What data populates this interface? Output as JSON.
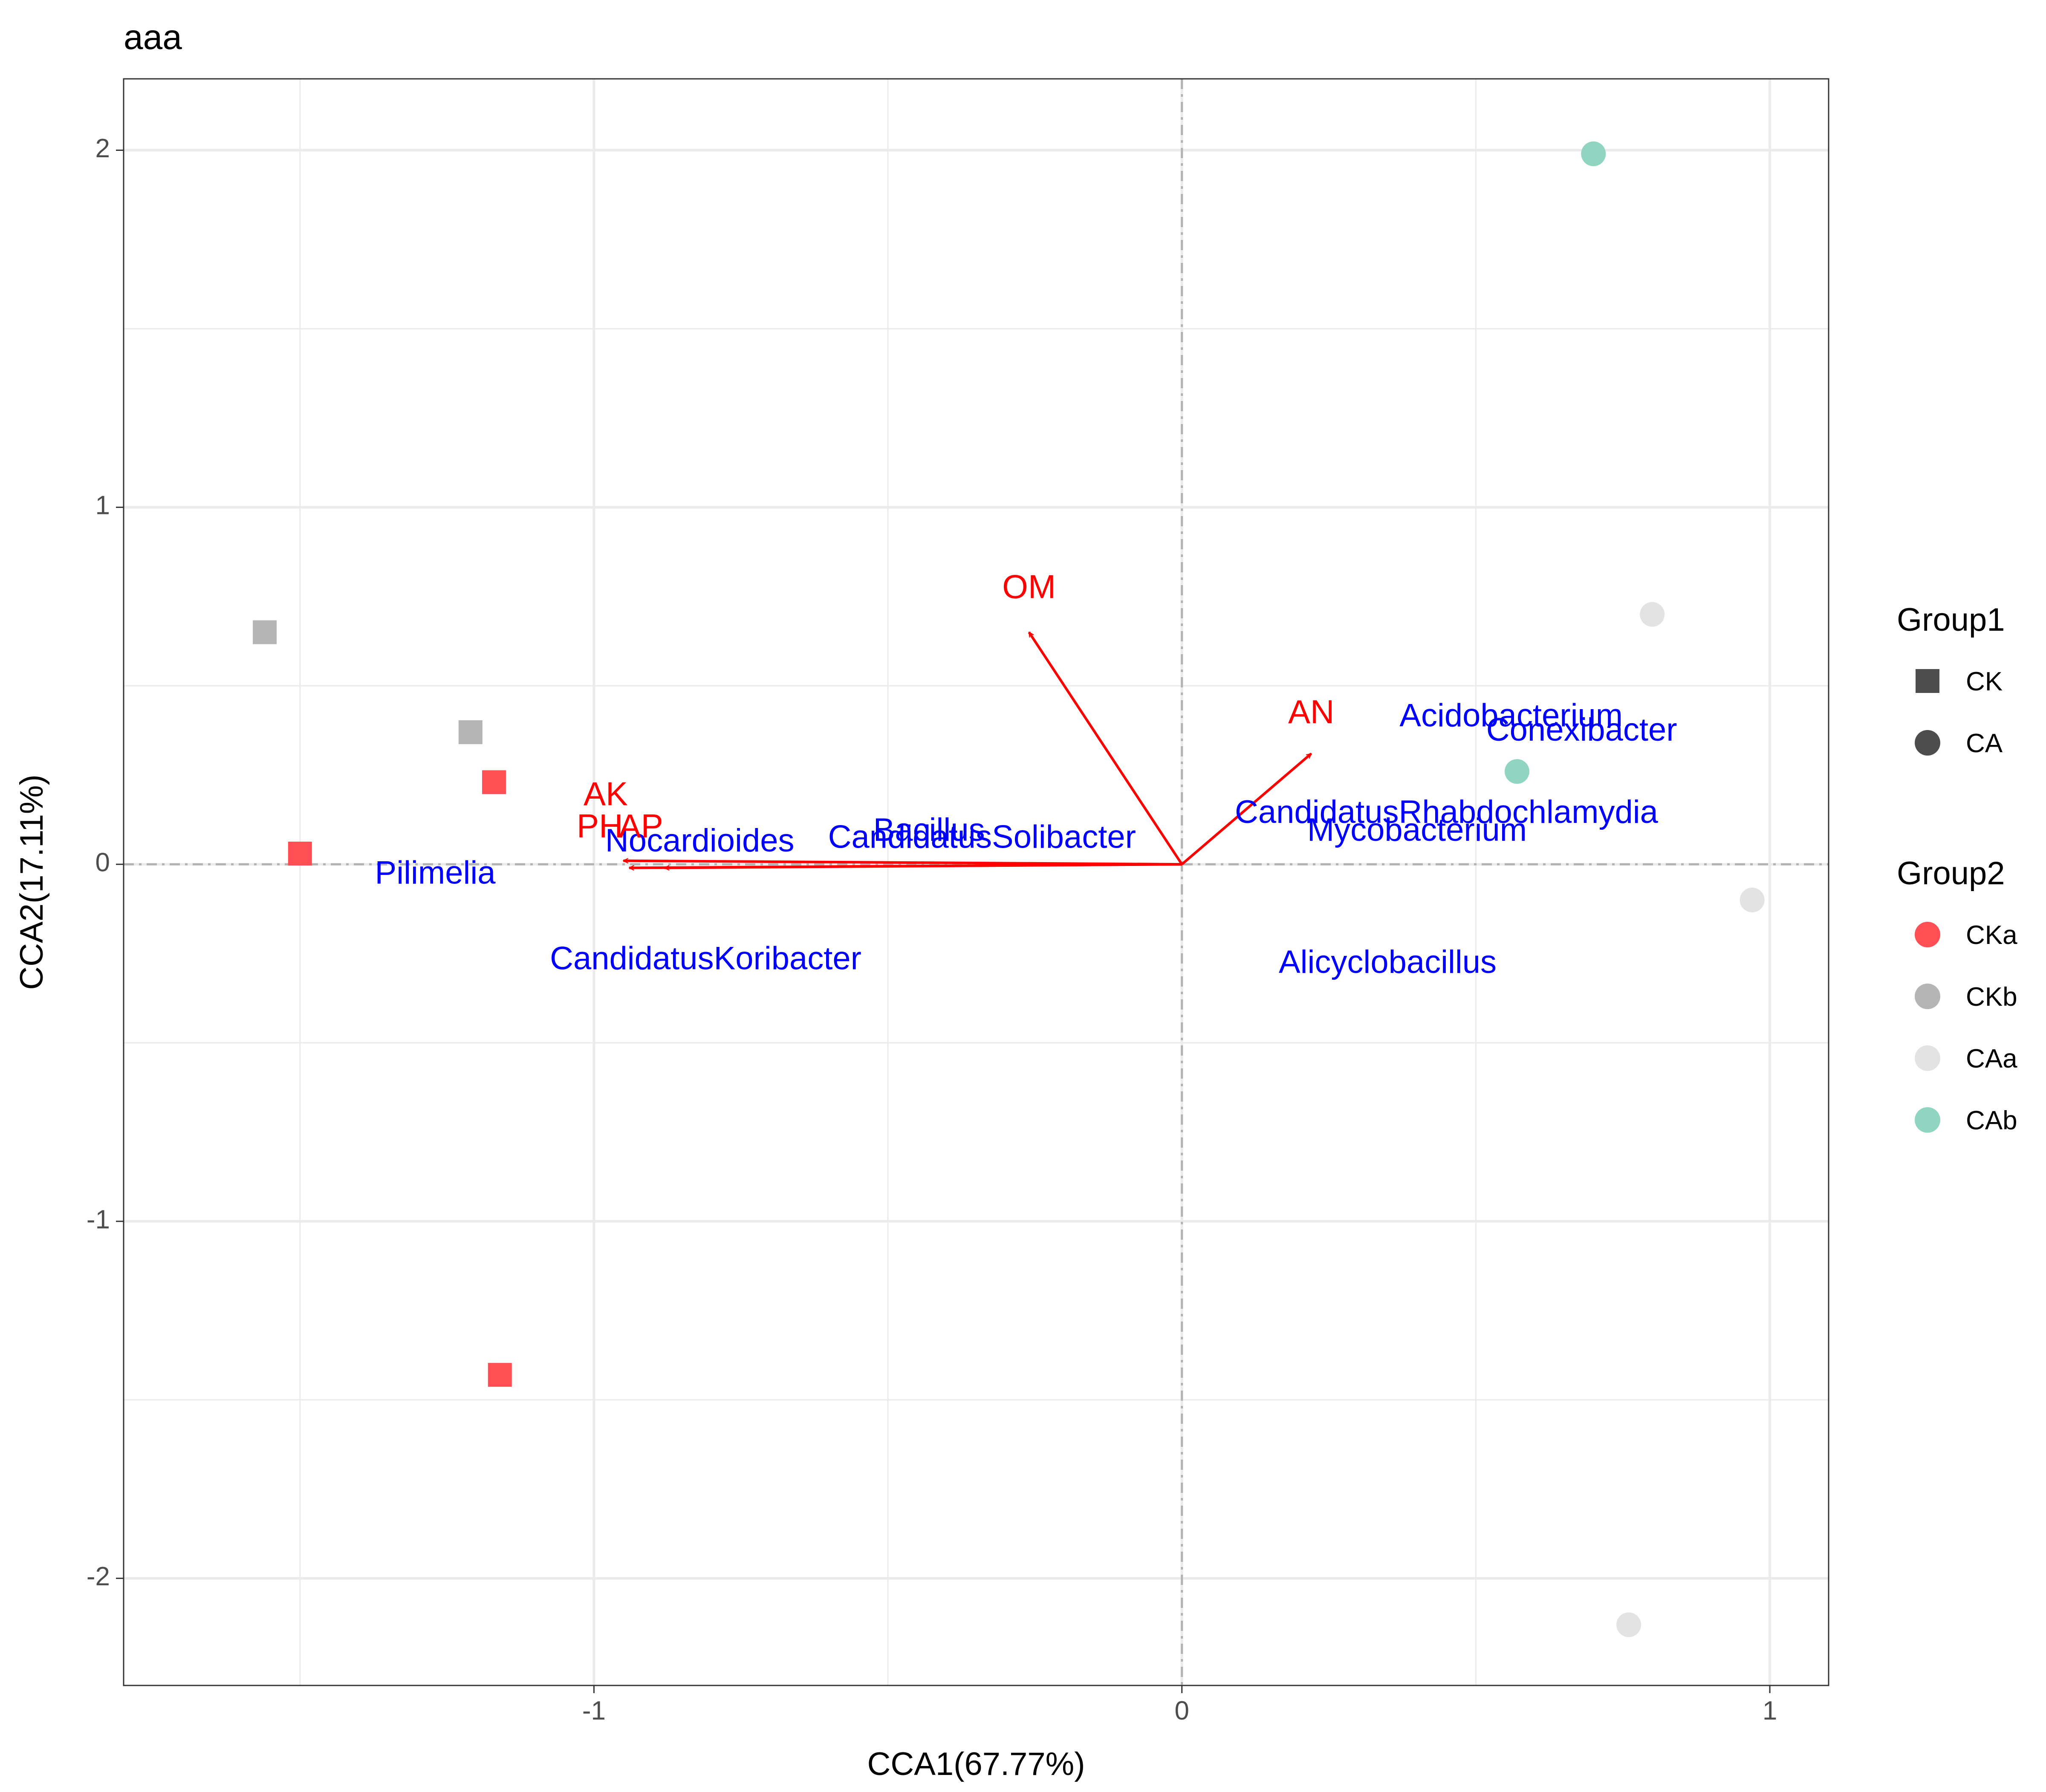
{
  "chart_data": {
    "type": "scatter",
    "title": "aaa",
    "xlabel": "CCA1(67.77%)",
    "ylabel": "CCA2(17.11%)",
    "xlim": [
      -1.8,
      1.1
    ],
    "ylim": [
      -2.3,
      2.2
    ],
    "x_ticks": [
      -1,
      0,
      1
    ],
    "x_tick_labels": [
      "-1",
      "0",
      "1"
    ],
    "y_ticks": [
      -2,
      -1,
      0,
      1,
      2
    ],
    "y_tick_labels": [
      "-2",
      "-1",
      "0",
      "1",
      "2"
    ],
    "grid": true,
    "reference_lines": {
      "x": 0,
      "y": 0,
      "style": "dashed",
      "color": "#b3b3b3"
    },
    "legend_placement": "right",
    "legends": [
      {
        "title": "Group1",
        "entries": [
          {
            "label": "CK",
            "shape": "square",
            "color": "#4d4d4d"
          },
          {
            "label": "CA",
            "shape": "circle",
            "color": "#4d4d4d"
          }
        ]
      },
      {
        "title": "Group2",
        "entries": [
          {
            "label": "CKa",
            "shape": "circle",
            "color": "#ff4f55"
          },
          {
            "label": "CKb",
            "shape": "circle",
            "color": "#b5b5b5"
          },
          {
            "label": "CAa",
            "shape": "circle",
            "color": "#e3e3e3"
          },
          {
            "label": "CAb",
            "shape": "circle",
            "color": "#8fd5bf"
          }
        ]
      }
    ],
    "group_colors": {
      "CKa": "#ff4f55",
      "CKb": "#b5b5b5",
      "CAa": "#e3e3e3",
      "CAb": "#8fd5bf"
    },
    "samples": [
      {
        "group1": "CK",
        "group2": "CKb",
        "x": -1.56,
        "y": 0.65
      },
      {
        "group1": "CK",
        "group2": "CKb",
        "x": -1.21,
        "y": 0.37
      },
      {
        "group1": "CK",
        "group2": "CKa",
        "x": -1.17,
        "y": 0.23
      },
      {
        "group1": "CK",
        "group2": "CKa",
        "x": -1.5,
        "y": 0.03
      },
      {
        "group1": "CK",
        "group2": "CKa",
        "x": -1.16,
        "y": -1.43
      },
      {
        "group1": "CA",
        "group2": "CAb",
        "x": 0.7,
        "y": 1.99
      },
      {
        "group1": "CA",
        "group2": "CAa",
        "x": 0.8,
        "y": 0.7
      },
      {
        "group1": "CA",
        "group2": "CAb",
        "x": 0.57,
        "y": 0.26
      },
      {
        "group1": "CA",
        "group2": "CAa",
        "x": 0.97,
        "y": -0.1
      },
      {
        "group1": "CA",
        "group2": "CAa",
        "x": 0.76,
        "y": -2.13
      }
    ],
    "env_arrow_color": "#ff0000",
    "env_arrows": [
      {
        "label": "OM",
        "x": -0.26,
        "y": 0.65,
        "label_x": -0.26,
        "label_y": 0.77
      },
      {
        "label": "AN",
        "x": 0.22,
        "y": 0.31,
        "label_x": 0.22,
        "label_y": 0.42
      },
      {
        "label": "AK",
        "x": -0.95,
        "y": 0.01,
        "label_x": -0.98,
        "label_y": 0.19
      },
      {
        "label": "PH",
        "x": -0.94,
        "y": -0.01,
        "label_x": -0.99,
        "label_y": 0.1
      },
      {
        "label": "AP",
        "x": -0.88,
        "y": -0.01,
        "label_x": -0.92,
        "label_y": 0.1
      }
    ],
    "species_color": "#0000ff",
    "species": [
      {
        "label": "Acidobacterium",
        "x": 0.56,
        "y": 0.41
      },
      {
        "label": "Conexibacter",
        "x": 0.68,
        "y": 0.37
      },
      {
        "label": "CandidatusRhabdochlamydia",
        "x": 0.45,
        "y": 0.14
      },
      {
        "label": "Mycobacterium",
        "x": 0.4,
        "y": 0.09
      },
      {
        "label": "Bacillus",
        "x": -0.43,
        "y": 0.09
      },
      {
        "label": "CandidatusSolibacter",
        "x": -0.34,
        "y": 0.07
      },
      {
        "label": "Nocardioides",
        "x": -0.82,
        "y": 0.06
      },
      {
        "label": "Pilimelia",
        "x": -1.27,
        "y": -0.03
      },
      {
        "label": "CandidatusKoribacter",
        "x": -0.81,
        "y": -0.27
      },
      {
        "label": "Alicyclobacillus",
        "x": 0.35,
        "y": -0.28
      }
    ]
  }
}
